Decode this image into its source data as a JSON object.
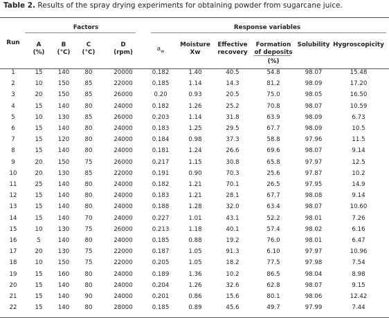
{
  "caption": {
    "label": "Table 2.",
    "text": " Results of the spray drying experiments for obtaining powder from sugarcane juice."
  },
  "headers": {
    "run": "Run",
    "factors": "Factors",
    "response": "Response variables",
    "cols": [
      [
        "A",
        "(%)"
      ],
      [
        "B",
        "(°C)"
      ],
      [
        "C",
        "(°C)"
      ],
      [
        "D",
        "(rpm)"
      ],
      [
        "aw",
        ""
      ],
      [
        "Moisture",
        "Xw"
      ],
      [
        "Effective",
        "recovery"
      ],
      [
        "Formation",
        "of deposits"
      ],
      [
        "Solubility",
        ""
      ],
      [
        "Hygroscopicity",
        ""
      ]
    ],
    "percent": "(%)"
  },
  "rows": [
    [
      "1",
      "15",
      "140",
      "80",
      "20000",
      "0.182",
      "1.40",
      "40.5",
      "54.8",
      "98.07",
      "15.48"
    ],
    [
      "2",
      "10",
      "150",
      "85",
      "22000",
      "0.185",
      "1.14",
      "14.3",
      "81.2",
      "98.09",
      "17.20"
    ],
    [
      "3",
      "20",
      "150",
      "85",
      "26000",
      "0.20",
      "0.93",
      "20.5",
      "75.0",
      "98.05",
      "16.50"
    ],
    [
      "4",
      "15",
      "140",
      "80",
      "24000",
      "0.182",
      "1.26",
      "25.2",
      "70.8",
      "98.07",
      "10.59"
    ],
    [
      "5",
      "10",
      "130",
      "85",
      "26000",
      "0.203",
      "1.14",
      "31.8",
      "63.9",
      "98.09",
      "6.73"
    ],
    [
      "6",
      "15",
      "140",
      "80",
      "24000",
      "0.183",
      "1.25",
      "29.5",
      "67.7",
      "98.09",
      "10.5"
    ],
    [
      "7",
      "15",
      "120",
      "80",
      "24000",
      "0.184",
      "0.98",
      "37.3",
      "58.8",
      "97.96",
      "11.5"
    ],
    [
      "8",
      "15",
      "140",
      "80",
      "24000",
      "0.181",
      "1.24",
      "26.6",
      "69.6",
      "98.07",
      "9.14"
    ],
    [
      "9",
      "20",
      "150",
      "75",
      "26000",
      "0.217",
      "1.15",
      "30.8",
      "65.8",
      "97.97",
      "12.5"
    ],
    [
      "10",
      "20",
      "130",
      "85",
      "22000",
      "0.191",
      "0.90",
      "70.3",
      "25.6",
      "97.87",
      "10.2"
    ],
    [
      "11",
      "25",
      "140",
      "80",
      "24000",
      "0.182",
      "1.21",
      "70.1",
      "26.5",
      "97.95",
      "14.9"
    ],
    [
      "12",
      "15",
      "140",
      "80",
      "24000",
      "0.183",
      "1.21",
      "28.1",
      "67.7",
      "98.08",
      "9.14"
    ],
    [
      "13",
      "15",
      "140",
      "80",
      "24000",
      "0.188",
      "1.28",
      "32.0",
      "63.4",
      "98.07",
      "10.60"
    ],
    [
      "14",
      "15",
      "140",
      "70",
      "24000",
      "0.227",
      "1.01",
      "43.1",
      "52.2",
      "98.01",
      "7.26"
    ],
    [
      "15",
      "10",
      "130",
      "75",
      "26000",
      "0.213",
      "1.18",
      "40.1",
      "57.4",
      "98.02",
      "6.16"
    ],
    [
      "16",
      "5",
      "140",
      "80",
      "24000",
      "0.185",
      "0.88",
      "19.2",
      "76.0",
      "98.01",
      "6.47"
    ],
    [
      "17",
      "20",
      "130",
      "75",
      "22000",
      "0.187",
      "1.05",
      "91.3",
      "6.10",
      "97.97",
      "10.96"
    ],
    [
      "18",
      "10",
      "150",
      "75",
      "22000",
      "0.205",
      "1.05",
      "18.2",
      "77.5",
      "97.98",
      "7.54"
    ],
    [
      "19",
      "15",
      "160",
      "80",
      "24000",
      "0.189",
      "1.36",
      "10.2",
      "86.5",
      "98.04",
      "8.98"
    ],
    [
      "20",
      "15",
      "140",
      "80",
      "24000",
      "0.204",
      "1.26",
      "32.6",
      "62.8",
      "98.07",
      "9.15"
    ],
    [
      "21",
      "15",
      "140",
      "90",
      "24000",
      "0.201",
      "0.86",
      "15.6",
      "80.1",
      "98.06",
      "12.42"
    ],
    [
      "22",
      "15",
      "140",
      "80",
      "28000",
      "0.185",
      "0.89",
      "45.6",
      "49.7",
      "97.99",
      "7.44"
    ]
  ]
}
